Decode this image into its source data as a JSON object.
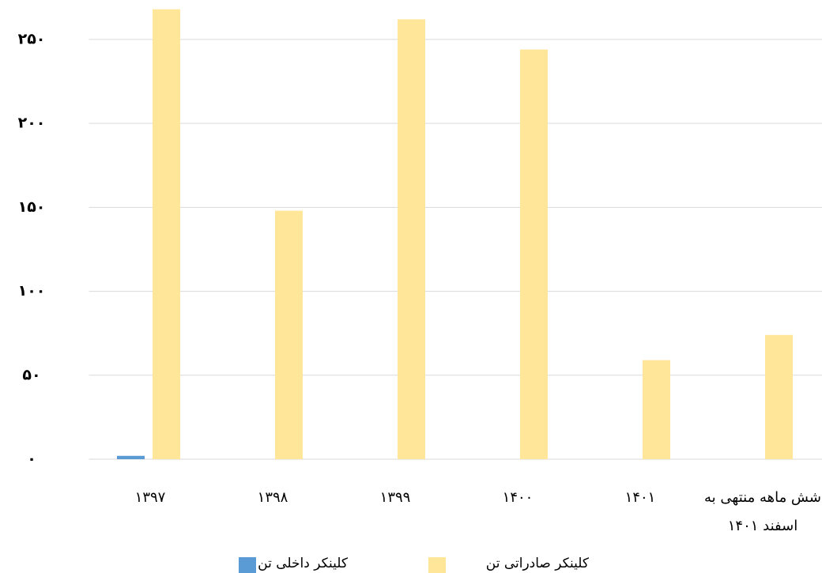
{
  "chart_data": {
    "type": "bar",
    "categories": [
      "۱۳۹۷",
      "۱۳۹۸",
      "۱۳۹۹",
      "۱۴۰۰",
      "۱۴۰۱",
      "شش ماهه منتهی به اسفند ۱۴۰۱"
    ],
    "series": [
      {
        "name": "کلینکر داخلی تن",
        "color": "#5b9bd5",
        "values": [
          2,
          0,
          0,
          0,
          0,
          0
        ]
      },
      {
        "name": "کلینکر صادراتی تن",
        "color": "#ffe699",
        "values": [
          268,
          148,
          262,
          244,
          59,
          74
        ]
      }
    ],
    "ylim": [
      0,
      273.5
    ],
    "yticks": [
      {
        "value": 0,
        "label": "۰"
      },
      {
        "value": 50,
        "label": "۵۰"
      },
      {
        "value": 100,
        "label": "۱۰۰"
      },
      {
        "value": 150,
        "label": "۱۵۰"
      },
      {
        "value": 200,
        "label": "۲۰۰"
      },
      {
        "value": 250,
        "label": "۲۵۰"
      }
    ],
    "grid": true
  }
}
